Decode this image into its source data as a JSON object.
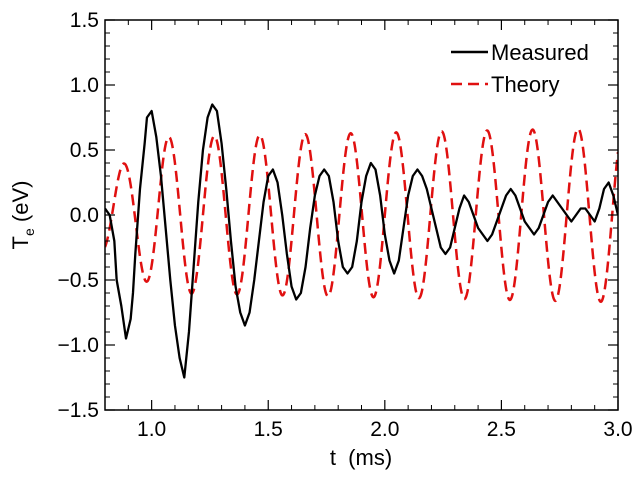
{
  "chart_data": {
    "type": "line",
    "title": "",
    "xlabel": "t  (ms)",
    "ylabel_main": "T",
    "ylabel_sub": "e",
    "ylabel_unit": " (eV)",
    "xlim": [
      0.8,
      3.0
    ],
    "ylim": [
      -1.5,
      1.5
    ],
    "x_ticks": [
      1.0,
      1.5,
      2.0,
      2.5,
      3.0
    ],
    "x_tick_labels": [
      "1.0",
      "1.5",
      "2.0",
      "2.5",
      "3.0"
    ],
    "y_ticks": [
      -1.5,
      -1.0,
      -0.5,
      0.0,
      0.5,
      1.0,
      1.5
    ],
    "y_tick_labels": [
      "−1.5",
      "−1.0",
      "−0.5",
      "0.0",
      "0.5",
      "1.0",
      "1.5"
    ],
    "grid": false,
    "legend_position": "top-right",
    "series": [
      {
        "name": "Measured",
        "color": "#000000",
        "style": "solid",
        "x": [
          0.8,
          0.82,
          0.84,
          0.85,
          0.87,
          0.89,
          0.91,
          0.92,
          0.93,
          0.95,
          0.97,
          0.98,
          1.0,
          1.02,
          1.04,
          1.06,
          1.08,
          1.1,
          1.12,
          1.14,
          1.16,
          1.18,
          1.2,
          1.22,
          1.24,
          1.26,
          1.28,
          1.3,
          1.32,
          1.34,
          1.36,
          1.38,
          1.4,
          1.42,
          1.44,
          1.46,
          1.48,
          1.5,
          1.52,
          1.54,
          1.56,
          1.58,
          1.6,
          1.62,
          1.64,
          1.66,
          1.68,
          1.7,
          1.72,
          1.74,
          1.76,
          1.78,
          1.8,
          1.82,
          1.84,
          1.86,
          1.88,
          1.9,
          1.92,
          1.94,
          1.96,
          1.98,
          2.0,
          2.02,
          2.04,
          2.06,
          2.08,
          2.1,
          2.12,
          2.14,
          2.16,
          2.18,
          2.2,
          2.22,
          2.24,
          2.26,
          2.28,
          2.3,
          2.32,
          2.34,
          2.36,
          2.38,
          2.4,
          2.42,
          2.44,
          2.46,
          2.48,
          2.5,
          2.52,
          2.54,
          2.56,
          2.58,
          2.6,
          2.62,
          2.64,
          2.66,
          2.68,
          2.7,
          2.72,
          2.74,
          2.76,
          2.78,
          2.8,
          2.82,
          2.84,
          2.86,
          2.88,
          2.9,
          2.92,
          2.94,
          2.96,
          2.98,
          3.0
        ],
        "values": [
          0.05,
          0.0,
          -0.2,
          -0.5,
          -0.7,
          -0.95,
          -0.8,
          -0.6,
          -0.3,
          0.2,
          0.55,
          0.75,
          0.8,
          0.6,
          0.3,
          -0.1,
          -0.5,
          -0.85,
          -1.1,
          -1.25,
          -0.9,
          -0.4,
          0.1,
          0.5,
          0.75,
          0.85,
          0.8,
          0.55,
          0.2,
          -0.2,
          -0.55,
          -0.75,
          -0.85,
          -0.75,
          -0.5,
          -0.2,
          0.1,
          0.3,
          0.35,
          0.25,
          0.0,
          -0.3,
          -0.55,
          -0.65,
          -0.6,
          -0.4,
          -0.1,
          0.15,
          0.3,
          0.35,
          0.3,
          0.1,
          -0.2,
          -0.4,
          -0.45,
          -0.4,
          -0.2,
          0.1,
          0.3,
          0.4,
          0.35,
          0.15,
          -0.15,
          -0.35,
          -0.45,
          -0.35,
          -0.1,
          0.15,
          0.3,
          0.35,
          0.3,
          0.2,
          0.05,
          -0.1,
          -0.25,
          -0.3,
          -0.25,
          -0.1,
          0.05,
          0.15,
          0.1,
          0.0,
          -0.1,
          -0.15,
          -0.2,
          -0.15,
          -0.05,
          0.05,
          0.15,
          0.2,
          0.15,
          0.05,
          -0.05,
          -0.1,
          -0.15,
          -0.1,
          0.0,
          0.1,
          0.15,
          0.1,
          0.05,
          0.0,
          -0.05,
          0.0,
          0.05,
          0.05,
          0.0,
          -0.05,
          0.05,
          0.2,
          0.25,
          0.15,
          0.0
        ]
      },
      {
        "name": "Theory",
        "color": "#e01010",
        "style": "dashed",
        "x_start": 0.8,
        "x_end": 3.0,
        "amplitude_start": 0.3,
        "amplitude_ramp_end": 0.6,
        "amplitude_ramp_time": 1.05,
        "amplitude_max": 0.67,
        "period_ms": 0.195,
        "phase_ms": 0.83
      }
    ]
  }
}
